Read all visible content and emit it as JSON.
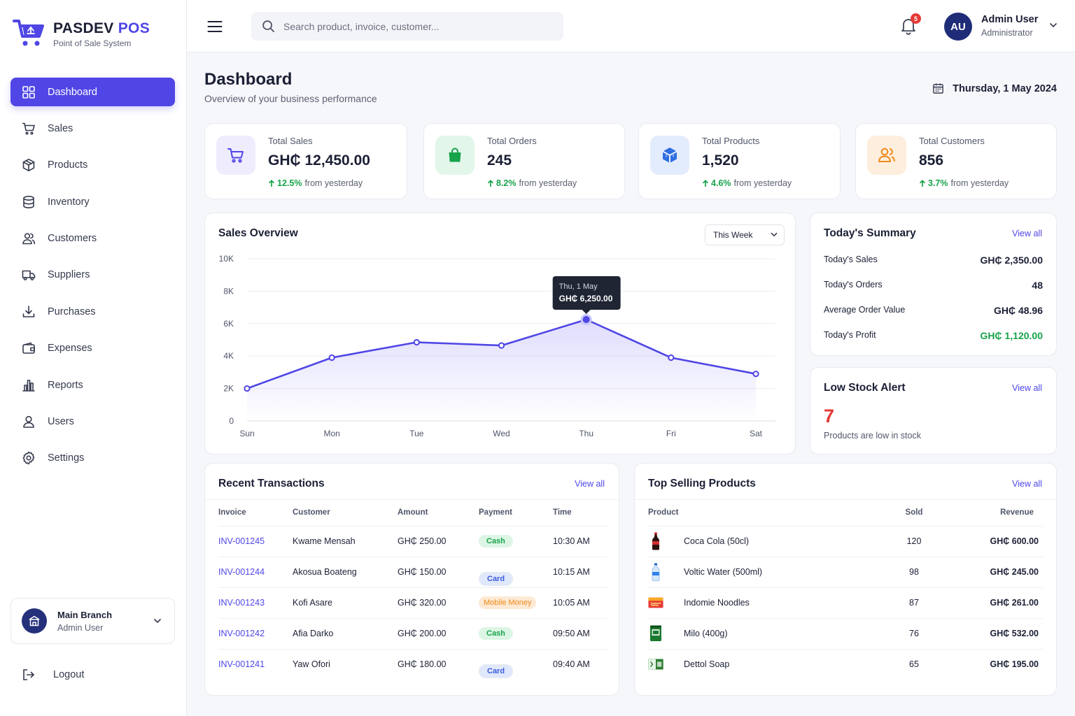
{
  "brand": {
    "name_main": "PASDEV",
    "name_accent": "POS",
    "subtitle": "Point of Sale System"
  },
  "nav": [
    {
      "label": "Dashboard",
      "icon": "dashboard-icon",
      "active": true
    },
    {
      "label": "Sales",
      "icon": "cart-icon"
    },
    {
      "label": "Products",
      "icon": "box-icon"
    },
    {
      "label": "Inventory",
      "icon": "database-icon"
    },
    {
      "label": "Customers",
      "icon": "users-icon"
    },
    {
      "label": "Suppliers",
      "icon": "truck-icon"
    },
    {
      "label": "Purchases",
      "icon": "download-icon"
    },
    {
      "label": "Expenses",
      "icon": "wallet-icon"
    },
    {
      "label": "Reports",
      "icon": "bar-chart-icon"
    },
    {
      "label": "Users",
      "icon": "user-icon"
    },
    {
      "label": "Settings",
      "icon": "gear-icon"
    }
  ],
  "branch": {
    "name": "Main Branch",
    "user": "Admin User"
  },
  "logout_label": "Logout",
  "search": {
    "placeholder": "Search product, invoice, customer..."
  },
  "notifications": {
    "count": "5"
  },
  "user": {
    "initials": "AU",
    "name": "Admin User",
    "role": "Administrator"
  },
  "header": {
    "title": "Dashboard",
    "subtitle": "Overview of your business performance",
    "date": "Thursday, 1 May 2024"
  },
  "stats": [
    {
      "label": "Total Sales",
      "value": "GH₵ 12,450.00",
      "pct": "12.5%",
      "suffix": "from yesterday",
      "icon": "cart-icon",
      "bg": "#efecfd",
      "color": "#5046e5"
    },
    {
      "label": "Total Orders",
      "value": "245",
      "pct": "8.2%",
      "suffix": "from yesterday",
      "icon": "shopping-bag-icon",
      "bg": "#e2f6ea",
      "color": "#16a34a"
    },
    {
      "label": "Total Products",
      "value": "1,520",
      "pct": "4.6%",
      "suffix": "from yesterday",
      "icon": "cube-icon",
      "bg": "#e3ecfd",
      "color": "#2f6de1"
    },
    {
      "label": "Total Customers",
      "value": "856",
      "pct": "3.7%",
      "suffix": "from yesterday",
      "icon": "users-icon",
      "bg": "#fdeedd",
      "color": "#ef8a1a"
    }
  ],
  "sales_overview": {
    "title": "Sales Overview",
    "period": "This Week",
    "tooltip": {
      "label": "Thu, 1 May",
      "value": "GH₵ 6,250.00"
    }
  },
  "chart_data": {
    "type": "area",
    "title": "Sales Overview",
    "categories": [
      "Sun",
      "Mon",
      "Tue",
      "Wed",
      "Thu",
      "Fri",
      "Sat"
    ],
    "values": [
      2000,
      3900,
      4850,
      4650,
      6250,
      3900,
      2900
    ],
    "ylim": [
      0,
      10000
    ],
    "yticks": [
      0,
      2000,
      4000,
      6000,
      8000,
      10000
    ],
    "ytick_labels": [
      "0",
      "2K",
      "4K",
      "6K",
      "8K",
      "10K"
    ],
    "highlight_index": 4,
    "color": "#4f46e5",
    "grid": true
  },
  "summary": {
    "title": "Today's Summary",
    "view_all": "View all",
    "rows": [
      {
        "label": "Today's Sales",
        "value": "GH₵ 2,350.00"
      },
      {
        "label": "Today's Orders",
        "value": "48"
      },
      {
        "label": "Average Order Value",
        "value": "GH₵ 48.96"
      },
      {
        "label": "Today's Profit",
        "value": "GH₵ 1,120.00",
        "color": "#16a34a"
      }
    ]
  },
  "low_stock": {
    "title": "Low Stock Alert",
    "view_all": "View all",
    "count": "7",
    "text": "Products are low in stock"
  },
  "transactions": {
    "title": "Recent Transactions",
    "view_all": "View all",
    "columns": [
      "Invoice",
      "Customer",
      "Amount",
      "Payment",
      "Time"
    ],
    "rows": [
      {
        "invoice": "INV-001245",
        "customer": "Kwame Mensah",
        "amount": "GH₵ 250.00",
        "payment": "Cash",
        "time": "10:30 AM"
      },
      {
        "invoice": "INV-001244",
        "customer": "Akosua Boateng",
        "amount": "GH₵ 150.00",
        "payment": "Card",
        "time": "10:15 AM"
      },
      {
        "invoice": "INV-001243",
        "customer": "Kofi Asare",
        "amount": "GH₵ 320.00",
        "payment": "Mobile Money",
        "time": "10:05 AM"
      },
      {
        "invoice": "INV-001242",
        "customer": "Afia Darko",
        "amount": "GH₵ 200.00",
        "payment": "Cash",
        "time": "09:50 AM"
      },
      {
        "invoice": "INV-001241",
        "customer": "Yaw Ofori",
        "amount": "GH₵ 180.00",
        "payment": "Card",
        "time": "09:40 AM"
      }
    ]
  },
  "top_products": {
    "title": "Top Selling Products",
    "view_all": "View all",
    "columns": [
      "Product",
      "Sold",
      "Revenue"
    ],
    "rows": [
      {
        "name": "Coca Cola (50cl)",
        "sold": "120",
        "revenue": "GH₵ 600.00",
        "icon": "soda-bottle-icon"
      },
      {
        "name": "Voltic Water (500ml)",
        "sold": "98",
        "revenue": "GH₵ 245.00",
        "icon": "water-bottle-icon"
      },
      {
        "name": "Indomie Noodles",
        "sold": "87",
        "revenue": "GH₵ 261.00",
        "icon": "noodles-pack-icon"
      },
      {
        "name": "Milo (400g)",
        "sold": "76",
        "revenue": "GH₵ 532.00",
        "icon": "milo-tin-icon"
      },
      {
        "name": "Dettol Soap",
        "sold": "65",
        "revenue": "GH₵ 195.00",
        "icon": "soap-icon"
      }
    ]
  }
}
